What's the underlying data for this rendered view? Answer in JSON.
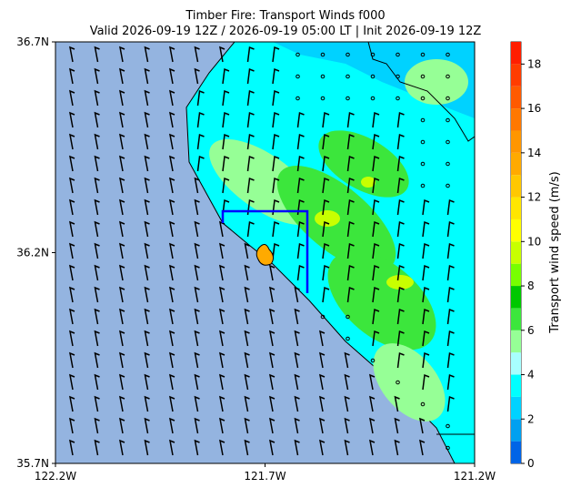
{
  "chart_data": {
    "type": "map",
    "title": "Timber Fire: Transport Winds f000",
    "subtitle": "Valid 2026-09-19 12Z / 2026-09-19 05:00 LT | Init 2026-09-19 12Z",
    "xlim": [
      -122.2,
      -121.2
    ],
    "xticks": [
      {
        "value": -122.2,
        "label": "122.2W"
      },
      {
        "value": -121.7,
        "label": "121.7W"
      },
      {
        "value": -121.2,
        "label": "121.2W"
      }
    ],
    "ylim": [
      35.7,
      36.7
    ],
    "yticks": [
      {
        "value": 35.7,
        "label": "35.7N"
      },
      {
        "value": 36.2,
        "label": "36.2N"
      },
      {
        "value": 36.7,
        "label": "36.7N"
      }
    ],
    "colorbar": {
      "label": "Transport wind speed (m/s)",
      "lim": [
        0,
        19
      ],
      "ticks": [
        0,
        2,
        4,
        6,
        8,
        10,
        12,
        14,
        16,
        18
      ],
      "levels": [
        0,
        1,
        2,
        3,
        4,
        5,
        6,
        7,
        8,
        9,
        10,
        11,
        12,
        13,
        14,
        15,
        16,
        17,
        18,
        19
      ],
      "colors": [
        "#0064e6",
        "#00a0f0",
        "#00d2ff",
        "#00ffff",
        "#a8ffff",
        "#96ff96",
        "#3ce63c",
        "#00c800",
        "#78ff00",
        "#c8ff00",
        "#ffff00",
        "#ffe600",
        "#ffc800",
        "#ffaa00",
        "#ff9600",
        "#ff7800",
        "#ff5a00",
        "#ff3c00",
        "#ff1e00"
      ]
    }
  }
}
